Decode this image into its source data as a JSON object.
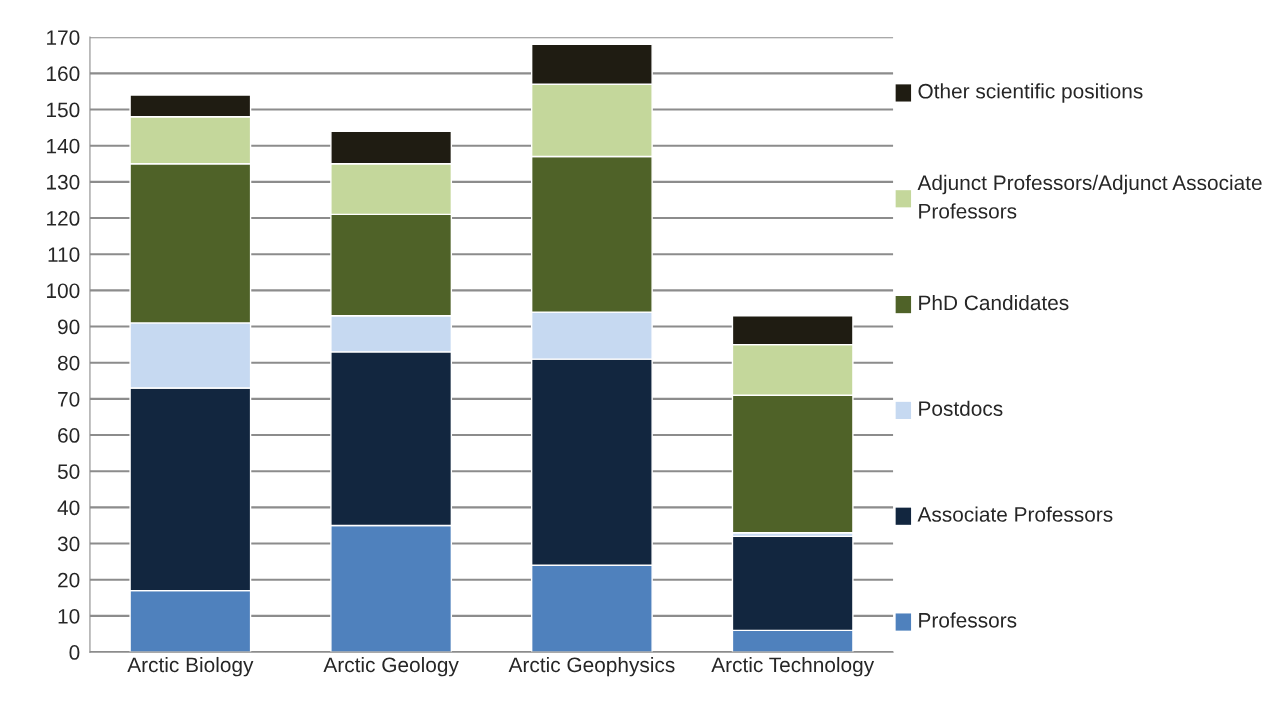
{
  "chart_data": {
    "type": "bar",
    "stacked": true,
    "categories": [
      "Arctic Biology",
      "Arctic Geology",
      "Arctic Geophysics",
      "Arctic Technology"
    ],
    "series": [
      {
        "name": "Professors",
        "color": "#4f81bd",
        "values": [
          17,
          35,
          24,
          6
        ]
      },
      {
        "name": "Associate Professors",
        "color": "#12263f",
        "values": [
          56,
          48,
          57,
          26
        ]
      },
      {
        "name": "Postdocs",
        "color": "#c6d9f1",
        "values": [
          18,
          10,
          13,
          1
        ]
      },
      {
        "name": "PhD Candidates",
        "color": "#4f6228",
        "values": [
          44,
          28,
          43,
          38
        ]
      },
      {
        "name": "Adjunct Professors/Adjunct Associate Professors",
        "color": "#c4d79b",
        "values": [
          13,
          14,
          20,
          14
        ]
      },
      {
        "name": "Other scientific positions",
        "color": "#1f1c12",
        "values": [
          6,
          9,
          11,
          8
        ]
      }
    ],
    "ylim": [
      0,
      170
    ],
    "yticks": [
      0,
      10,
      20,
      30,
      40,
      50,
      60,
      70,
      80,
      90,
      100,
      110,
      120,
      130,
      140,
      150,
      160,
      170
    ],
    "grid": "y",
    "legend": "right"
  }
}
